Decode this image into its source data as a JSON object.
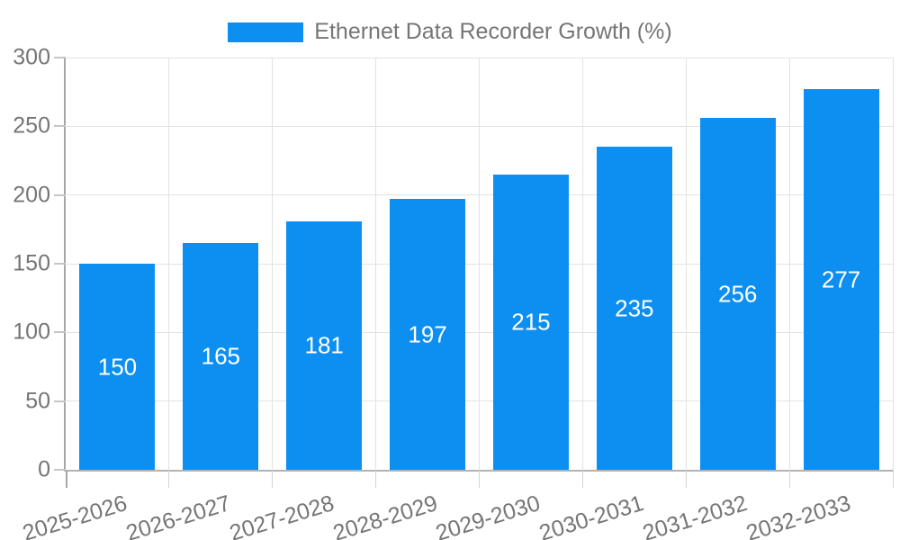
{
  "legend": {
    "label": "Ethernet Data Recorder Growth (%)"
  },
  "chart_data": {
    "type": "bar",
    "title": "Ethernet Data Recorder Growth (%)",
    "categories": [
      "2025-2026",
      "2026-2027",
      "2027-2028",
      "2028-2029",
      "2029-2030",
      "2030-2031",
      "2031-2032",
      "2032-2033"
    ],
    "values": [
      150,
      165,
      181,
      197,
      215,
      235,
      256,
      277
    ],
    "xlabel": "",
    "ylabel": "",
    "ylim": [
      0,
      300
    ],
    "yticks": [
      0,
      50,
      100,
      150,
      200,
      250,
      300
    ],
    "grid": "both",
    "legend_position": "top-center",
    "value_labels": "inside-center",
    "colors": {
      "bar": "#0d8ff2",
      "value_text": "#ffffff",
      "axis_text": "#757575",
      "gridline": "#e2e2e2",
      "axis_line": "#a9a9a9",
      "background": "#ffffff"
    }
  }
}
